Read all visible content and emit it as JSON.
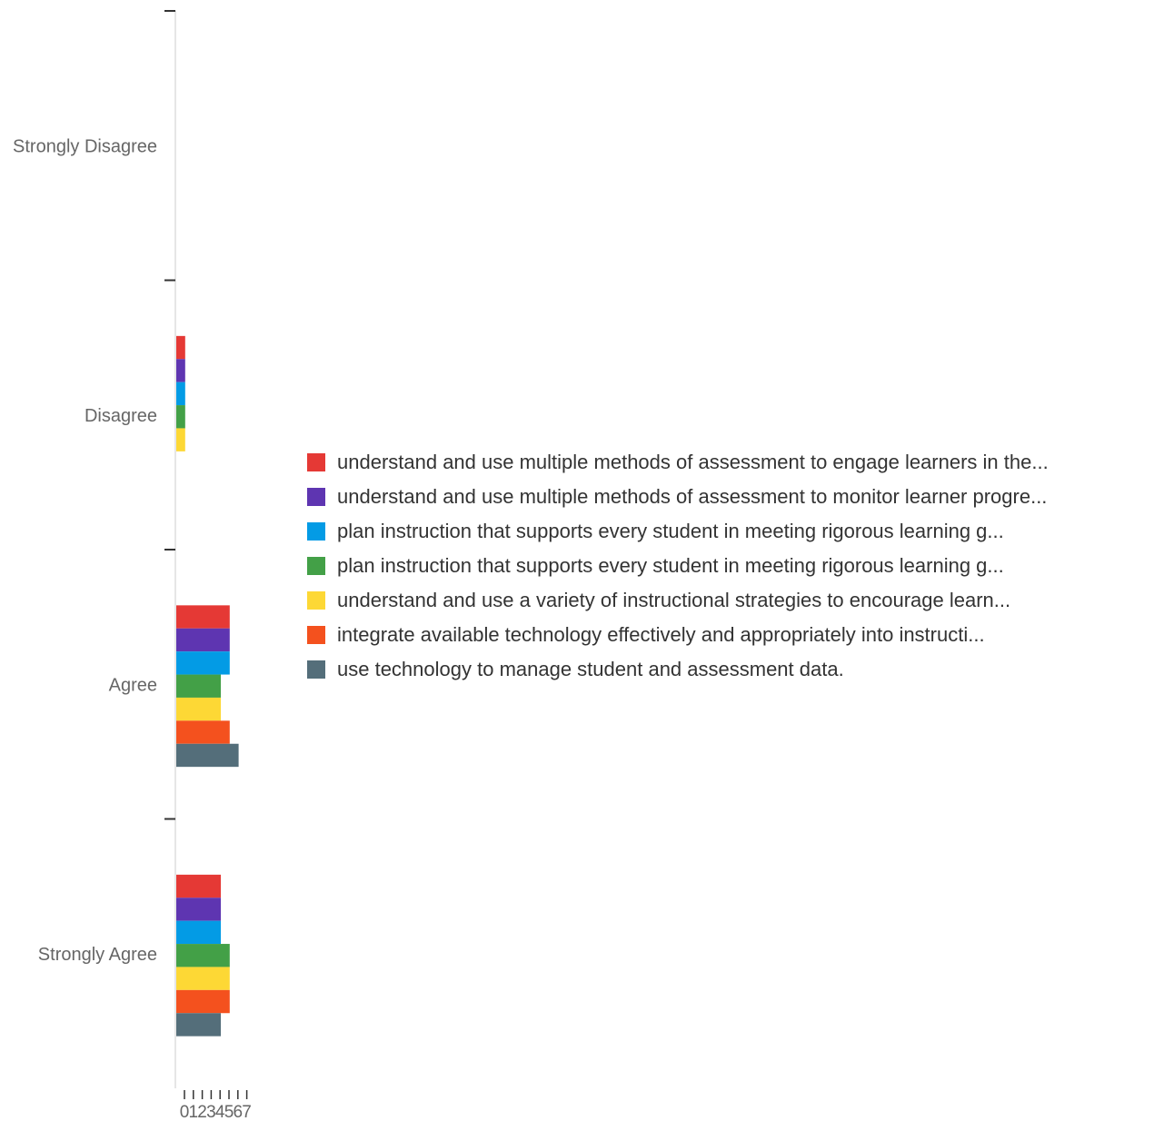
{
  "chart_data": {
    "type": "bar",
    "orientation": "horizontal",
    "categories": [
      "Strongly Disagree",
      "Disagree",
      "Agree",
      "Strongly Agree"
    ],
    "series": [
      {
        "name": "understand and use multiple methods of assessment to engage learners in the...",
        "color": "#e53935",
        "values": [
          0,
          1,
          6,
          5
        ]
      },
      {
        "name": "understand and use multiple methods of assessment to monitor learner progre...",
        "color": "#5e35b1",
        "values": [
          0,
          1,
          6,
          5
        ]
      },
      {
        "name": "plan instruction that supports every student in meeting rigorous learning g...",
        "color": "#039be5",
        "values": [
          0,
          1,
          6,
          5
        ]
      },
      {
        "name": "plan instruction that supports every student in meeting rigorous learning g...",
        "color": "#43a047",
        "values": [
          0,
          1,
          5,
          6
        ]
      },
      {
        "name": "understand and use a variety of instructional strategies to encourage learn...",
        "color": "#fdd835",
        "values": [
          0,
          1,
          5,
          6
        ]
      },
      {
        "name": "integrate available technology effectively and appropriately into instructi...",
        "color": "#f4511e",
        "values": [
          0,
          0,
          6,
          6
        ]
      },
      {
        "name": "use technology to manage student and assessment data.",
        "color": "#546e7a",
        "values": [
          0,
          0,
          7,
          5
        ]
      }
    ],
    "xticks": [
      "0",
      "1",
      "2",
      "3",
      "4",
      "5",
      "6",
      "7"
    ],
    "xlim": [
      0,
      7
    ],
    "grid": false,
    "legend_position": "right"
  }
}
